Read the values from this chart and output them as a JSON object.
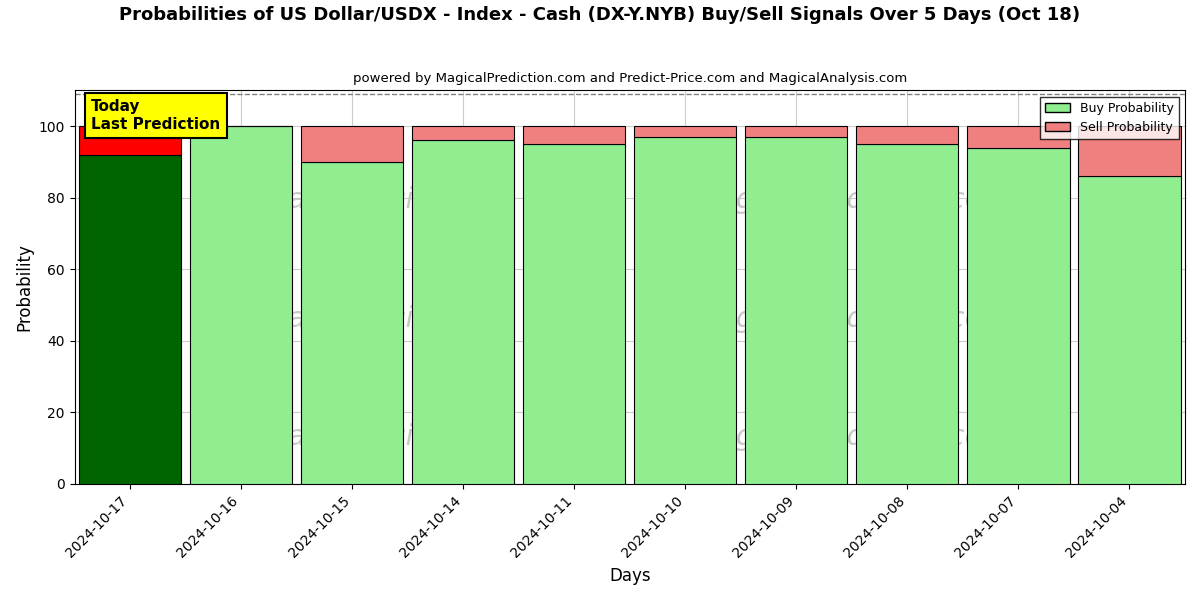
{
  "title": "Probabilities of US Dollar/USDX - Index - Cash (DX-Y.NYB) Buy/Sell Signals Over 5 Days (Oct 18)",
  "subtitle": "powered by MagicalPrediction.com and Predict-Price.com and MagicalAnalysis.com",
  "xlabel": "Days",
  "ylabel": "Probability",
  "dates": [
    "2024-10-17",
    "2024-10-16",
    "2024-10-15",
    "2024-10-14",
    "2024-10-11",
    "2024-10-10",
    "2024-10-09",
    "2024-10-08",
    "2024-10-07",
    "2024-10-04"
  ],
  "buy_probs": [
    92,
    100,
    90,
    96,
    95,
    97,
    97,
    95,
    94,
    86
  ],
  "sell_probs": [
    8,
    0,
    10,
    4,
    5,
    3,
    3,
    5,
    6,
    14
  ],
  "today_bar_index": 0,
  "today_bar_buy_color": "#006400",
  "today_bar_sell_color": "#ff0000",
  "buy_color": "#90EE90",
  "sell_color": "#F08080",
  "today_annotation": "Today\nLast Prediction",
  "annotation_box_color": "#FFFF00",
  "ylim": [
    0,
    110
  ],
  "dashed_line_y": 109,
  "grid_color": "#cccccc",
  "bar_edge_color": "black",
  "watermark_color": "#c8c8c8",
  "background_color": "#ffffff",
  "bar_width": 0.92
}
